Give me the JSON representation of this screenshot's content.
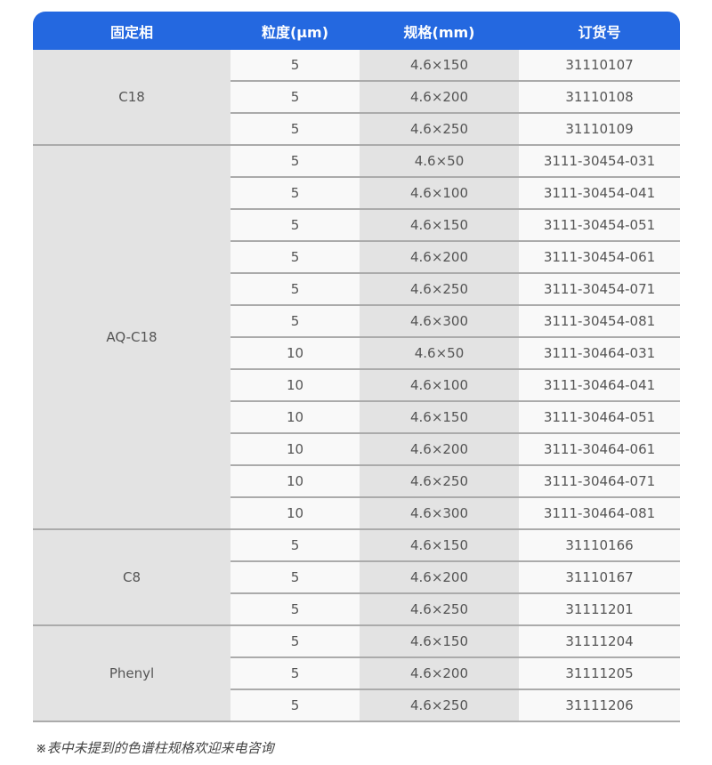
{
  "table": {
    "headers": [
      "固定相",
      "粒度(μm)",
      "规格(mm)",
      "订货号"
    ],
    "header_color": "#2468e0",
    "groups": [
      {
        "phase": "C18",
        "rows": [
          [
            "5",
            "4.6×150",
            "31110107"
          ],
          [
            "5",
            "4.6×200",
            "31110108"
          ],
          [
            "5",
            "4.6×250",
            "31110109"
          ]
        ]
      },
      {
        "phase": "AQ-C18",
        "rows": [
          [
            "5",
            "4.6×50",
            "3111-30454-031"
          ],
          [
            "5",
            "4.6×100",
            "3111-30454-041"
          ],
          [
            "5",
            "4.6×150",
            "3111-30454-051"
          ],
          [
            "5",
            "4.6×200",
            "3111-30454-061"
          ],
          [
            "5",
            "4.6×250",
            "3111-30454-071"
          ],
          [
            "5",
            "4.6×300",
            "3111-30454-081"
          ],
          [
            "10",
            "4.6×50",
            "3111-30464-031"
          ],
          [
            "10",
            "4.6×100",
            "3111-30464-041"
          ],
          [
            "10",
            "4.6×150",
            "3111-30464-051"
          ],
          [
            "10",
            "4.6×200",
            "3111-30464-061"
          ],
          [
            "10",
            "4.6×250",
            "3111-30464-071"
          ],
          [
            "10",
            "4.6×300",
            "3111-30464-081"
          ]
        ]
      },
      {
        "phase": "C8",
        "rows": [
          [
            "5",
            "4.6×150",
            "31110166"
          ],
          [
            "5",
            "4.6×200",
            "31110167"
          ],
          [
            "5",
            "4.6×250",
            "31111201"
          ]
        ]
      },
      {
        "phase": "Phenyl",
        "rows": [
          [
            "5",
            "4.6×150",
            "31111204"
          ],
          [
            "5",
            "4.6×200",
            "31111205"
          ],
          [
            "5",
            "4.6×250",
            "31111206"
          ]
        ]
      }
    ]
  },
  "footnote": "※表中未提到的色谱柱规格欢迎来电咨询"
}
